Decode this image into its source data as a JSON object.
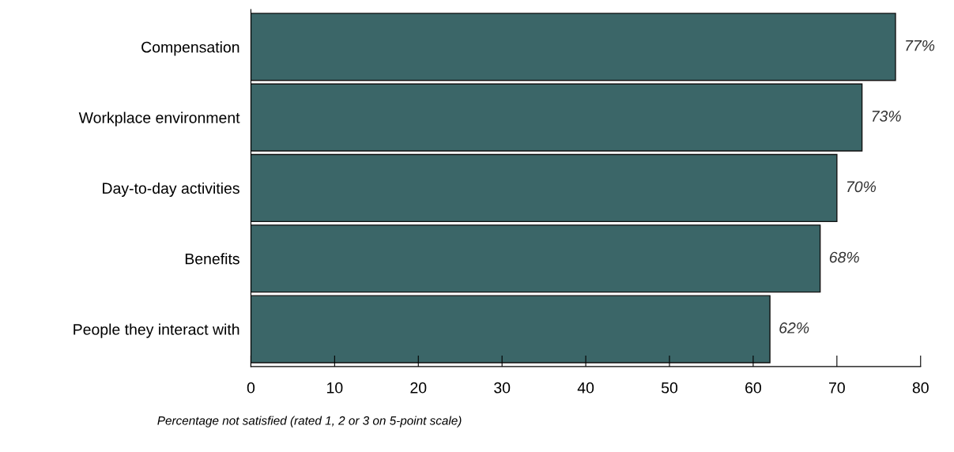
{
  "chart_data": {
    "type": "bar",
    "orientation": "horizontal",
    "xlabel": "Percentage not satisfied (rated 1, 2 or 3 on 5-point scale)",
    "categories": [
      "Compensation",
      "Workplace environment",
      "Day-to-day activities",
      "Benefits",
      "People they interact with"
    ],
    "values": [
      77,
      73,
      70,
      68,
      62
    ],
    "value_labels": [
      "77%",
      "73%",
      "70%",
      "68%",
      "62%"
    ],
    "color": "#3b6668",
    "xlim": [
      0,
      80
    ],
    "xticks": [
      0,
      10,
      20,
      30,
      40,
      50,
      60,
      70,
      80
    ],
    "grid": false,
    "legend": false
  }
}
